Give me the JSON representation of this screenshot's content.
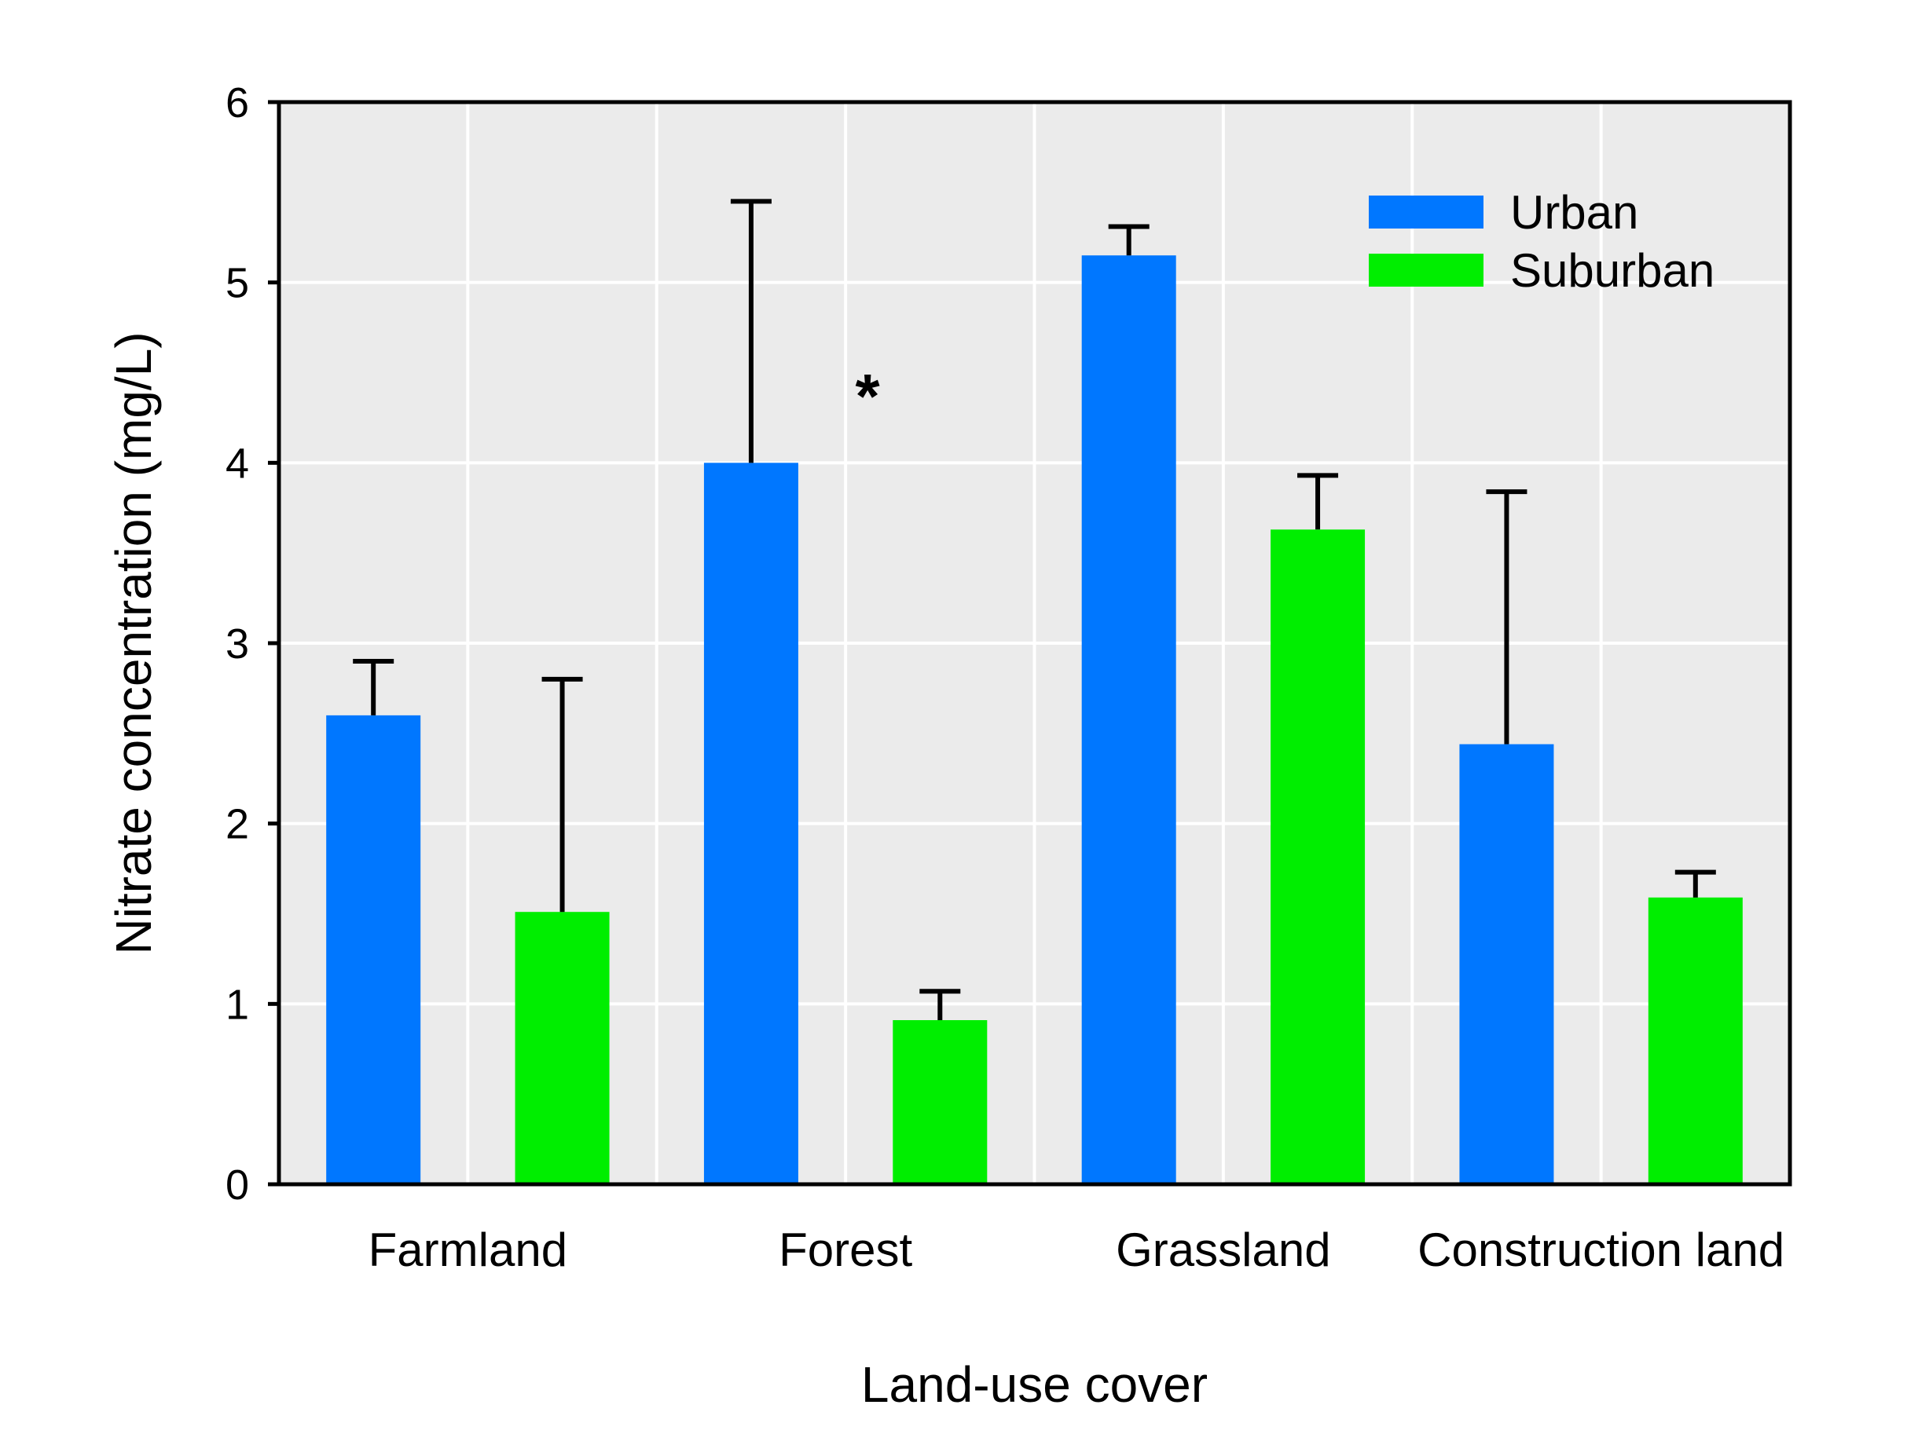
{
  "chart_data": {
    "type": "bar",
    "title": "",
    "xlabel": "Land-use cover",
    "ylabel": "Nitrate concentration (mg/L)",
    "ylim": [
      0,
      6
    ],
    "yticks": [
      0,
      1,
      2,
      3,
      4,
      5,
      6
    ],
    "grid": true,
    "legend_position": "top-right",
    "categories": [
      "Farmland",
      "Forest",
      "Grassland",
      "Construction land"
    ],
    "series": [
      {
        "name": "Urban",
        "color": "#0077ff",
        "values": [
          2.6,
          4.0,
          5.15,
          2.44
        ],
        "error_upper": [
          2.9,
          5.45,
          5.31,
          3.84
        ]
      },
      {
        "name": "Suburban",
        "color": "#00ee00",
        "values": [
          1.51,
          0.91,
          3.63,
          1.59
        ],
        "error_upper": [
          2.8,
          1.07,
          3.93,
          1.73
        ]
      }
    ],
    "annotations": [
      {
        "text": "*",
        "category": "Forest",
        "y": 4.38
      }
    ]
  },
  "colors": {
    "plot_background": "#ebebeb",
    "grid": "#ffffff",
    "axis": "#000000"
  }
}
